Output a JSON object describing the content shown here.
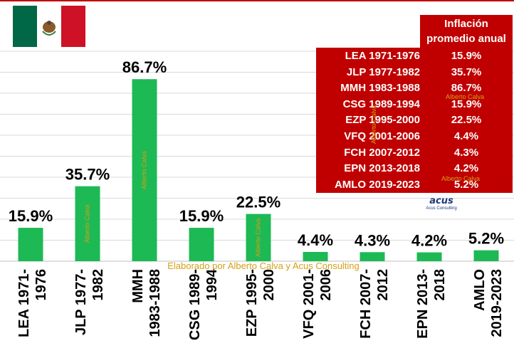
{
  "flag": {
    "colors": [
      "#006847",
      "#ffffff",
      "#ce1126"
    ],
    "emblem": "mexico-coat-of-arms"
  },
  "colors": {
    "bar": "#1db954",
    "table_bg": "#c00000",
    "table_text": "#ffffff",
    "watermark": "#d4a017",
    "grid": "#d9d9d9"
  },
  "chart_data": {
    "type": "bar",
    "categories": [
      "LEA 1971-\n1976",
      "JLP 1977-\n1982",
      "MMH\n1983-1988",
      "CSG 1989-\n1994",
      "EZP 1995-\n2000",
      "VFQ 2001-\n2006",
      "FCH 2007-\n2012",
      "EPN 2013-\n2018",
      "AMLO\n2019-2023"
    ],
    "values": [
      15.9,
      35.7,
      86.7,
      15.9,
      22.5,
      4.4,
      4.3,
      4.2,
      5.2
    ],
    "data_labels": [
      "15.9%",
      "35.7%",
      "86.7%",
      "15.9%",
      "22.5%",
      "4.4%",
      "4.3%",
      "4.2%",
      "5.2%"
    ],
    "ylim": [
      0,
      100
    ],
    "grid": true,
    "legend": "none"
  },
  "table": {
    "header": [
      "Inflación",
      "promedio anual"
    ],
    "rows": [
      {
        "period": "LEA 1971-1976",
        "value": "15.9%"
      },
      {
        "period": "JLP 1977-1982",
        "value": "35.7%"
      },
      {
        "period": "MMH 1983-1988",
        "value": "86.7%"
      },
      {
        "period": "CSG 1989-1994",
        "value": "15.9%"
      },
      {
        "period": "EZP 1995-2000",
        "value": "22.5%"
      },
      {
        "period": "VFQ 2001-2006",
        "value": "4.4%"
      },
      {
        "period": "FCH 2007-2012",
        "value": "4.3%"
      },
      {
        "period": "EPN 2013-2018",
        "value": "4.2%"
      },
      {
        "period": "AMLO 2019-2023",
        "value": "5.2%"
      }
    ]
  },
  "watermark": "Alberto Calva",
  "acus": {
    "logo": "acus",
    "sub": "Acus Consulting"
  },
  "credit": "Elaborado por Alberto Calva y Acus Consulting"
}
